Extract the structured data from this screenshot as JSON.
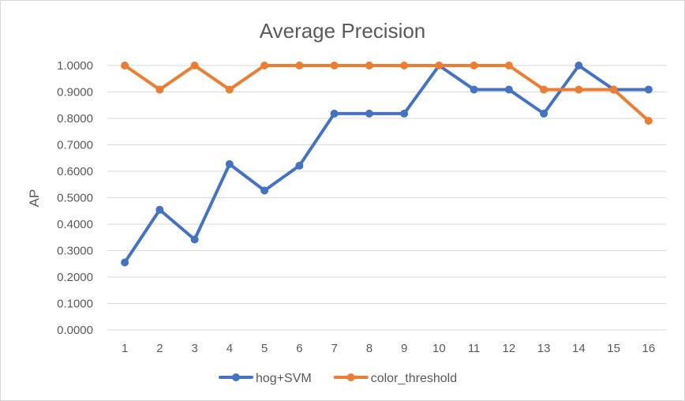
{
  "chart_data": {
    "type": "line",
    "title": "Average Precision",
    "xlabel": "",
    "ylabel": "AP",
    "ylim": [
      0,
      1
    ],
    "grid": true,
    "legend": "bottom",
    "categories": [
      "1",
      "2",
      "3",
      "4",
      "5",
      "6",
      "7",
      "8",
      "9",
      "10",
      "11",
      "12",
      "13",
      "14",
      "15",
      "16"
    ],
    "yticks": [
      "0.0000",
      "0.1000",
      "0.2000",
      "0.3000",
      "0.4000",
      "0.5000",
      "0.6000",
      "0.7000",
      "0.8000",
      "0.9000",
      "1.0000"
    ],
    "series": [
      {
        "name": "hog+SVM",
        "color": "#4472C4",
        "values": [
          0.2553,
          0.4545,
          0.3421,
          0.6273,
          0.5273,
          0.6212,
          0.8182,
          0.8182,
          0.8182,
          1.0,
          0.9091,
          0.9091,
          0.8182,
          1.0,
          0.9091,
          0.9091
        ]
      },
      {
        "name": "color_threshold",
        "color": "#ED7D31",
        "values": [
          1.0,
          0.9091,
          1.0,
          0.9091,
          1.0,
          1.0,
          1.0,
          1.0,
          1.0,
          1.0,
          1.0,
          1.0,
          0.9091,
          0.9091,
          0.9091,
          0.7909
        ]
      }
    ]
  }
}
